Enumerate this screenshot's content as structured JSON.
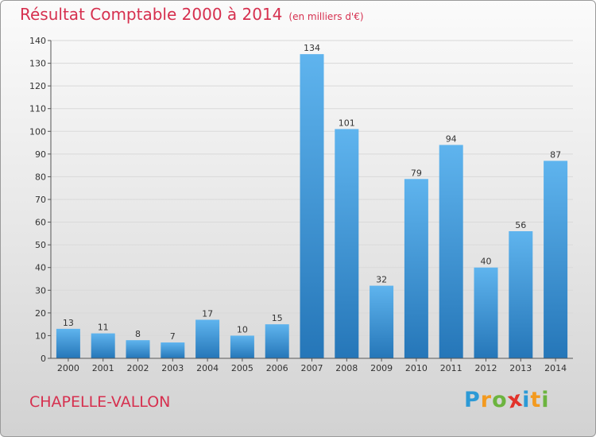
{
  "title": "Résultat Comptable 2000 à 2014",
  "subtitle": "(en milliers d'€)",
  "commune": "CHAPELLE-VALLON",
  "logo": {
    "letters": [
      {
        "ch": "P",
        "color": "#2c9ad6"
      },
      {
        "ch": "r",
        "color": "#f39a1f"
      },
      {
        "ch": "o",
        "color": "#6cb43f"
      },
      {
        "ch": "x",
        "color": "#e2332b"
      },
      {
        "ch": "i",
        "color": "#2c9ad6"
      },
      {
        "ch": "t",
        "color": "#f39a1f"
      },
      {
        "ch": "i",
        "color": "#6cb43f"
      }
    ]
  },
  "colors": {
    "bar_top": "#5fb4ee",
    "bar_bottom": "#2576b8",
    "title": "#d6304f",
    "grid": "#d9d9d9"
  },
  "chart_data": {
    "type": "bar",
    "title": "Résultat Comptable 2000 à 2014",
    "xlabel": "",
    "ylabel": "",
    "categories": [
      "2000",
      "2001",
      "2002",
      "2003",
      "2004",
      "2005",
      "2006",
      "2007",
      "2008",
      "2009",
      "2010",
      "2011",
      "2012",
      "2013",
      "2014"
    ],
    "values": [
      13,
      11,
      8,
      7,
      17,
      10,
      15,
      134,
      101,
      32,
      79,
      94,
      40,
      56,
      87
    ],
    "data_labels": [
      "13",
      "11",
      "8",
      "7",
      "17",
      "10",
      "15",
      "134",
      "101",
      "32",
      "79",
      "94",
      "40",
      "56",
      "87"
    ],
    "ylim": [
      0,
      140
    ],
    "yticks": [
      0,
      10,
      20,
      30,
      40,
      50,
      60,
      70,
      80,
      90,
      100,
      110,
      120,
      130,
      140
    ],
    "ytick_labels": [
      "0",
      "10",
      "20",
      "30",
      "40",
      "50",
      "60",
      "70",
      "80",
      "90",
      "100",
      "110",
      "120",
      "130",
      "140"
    ],
    "grid": true
  }
}
